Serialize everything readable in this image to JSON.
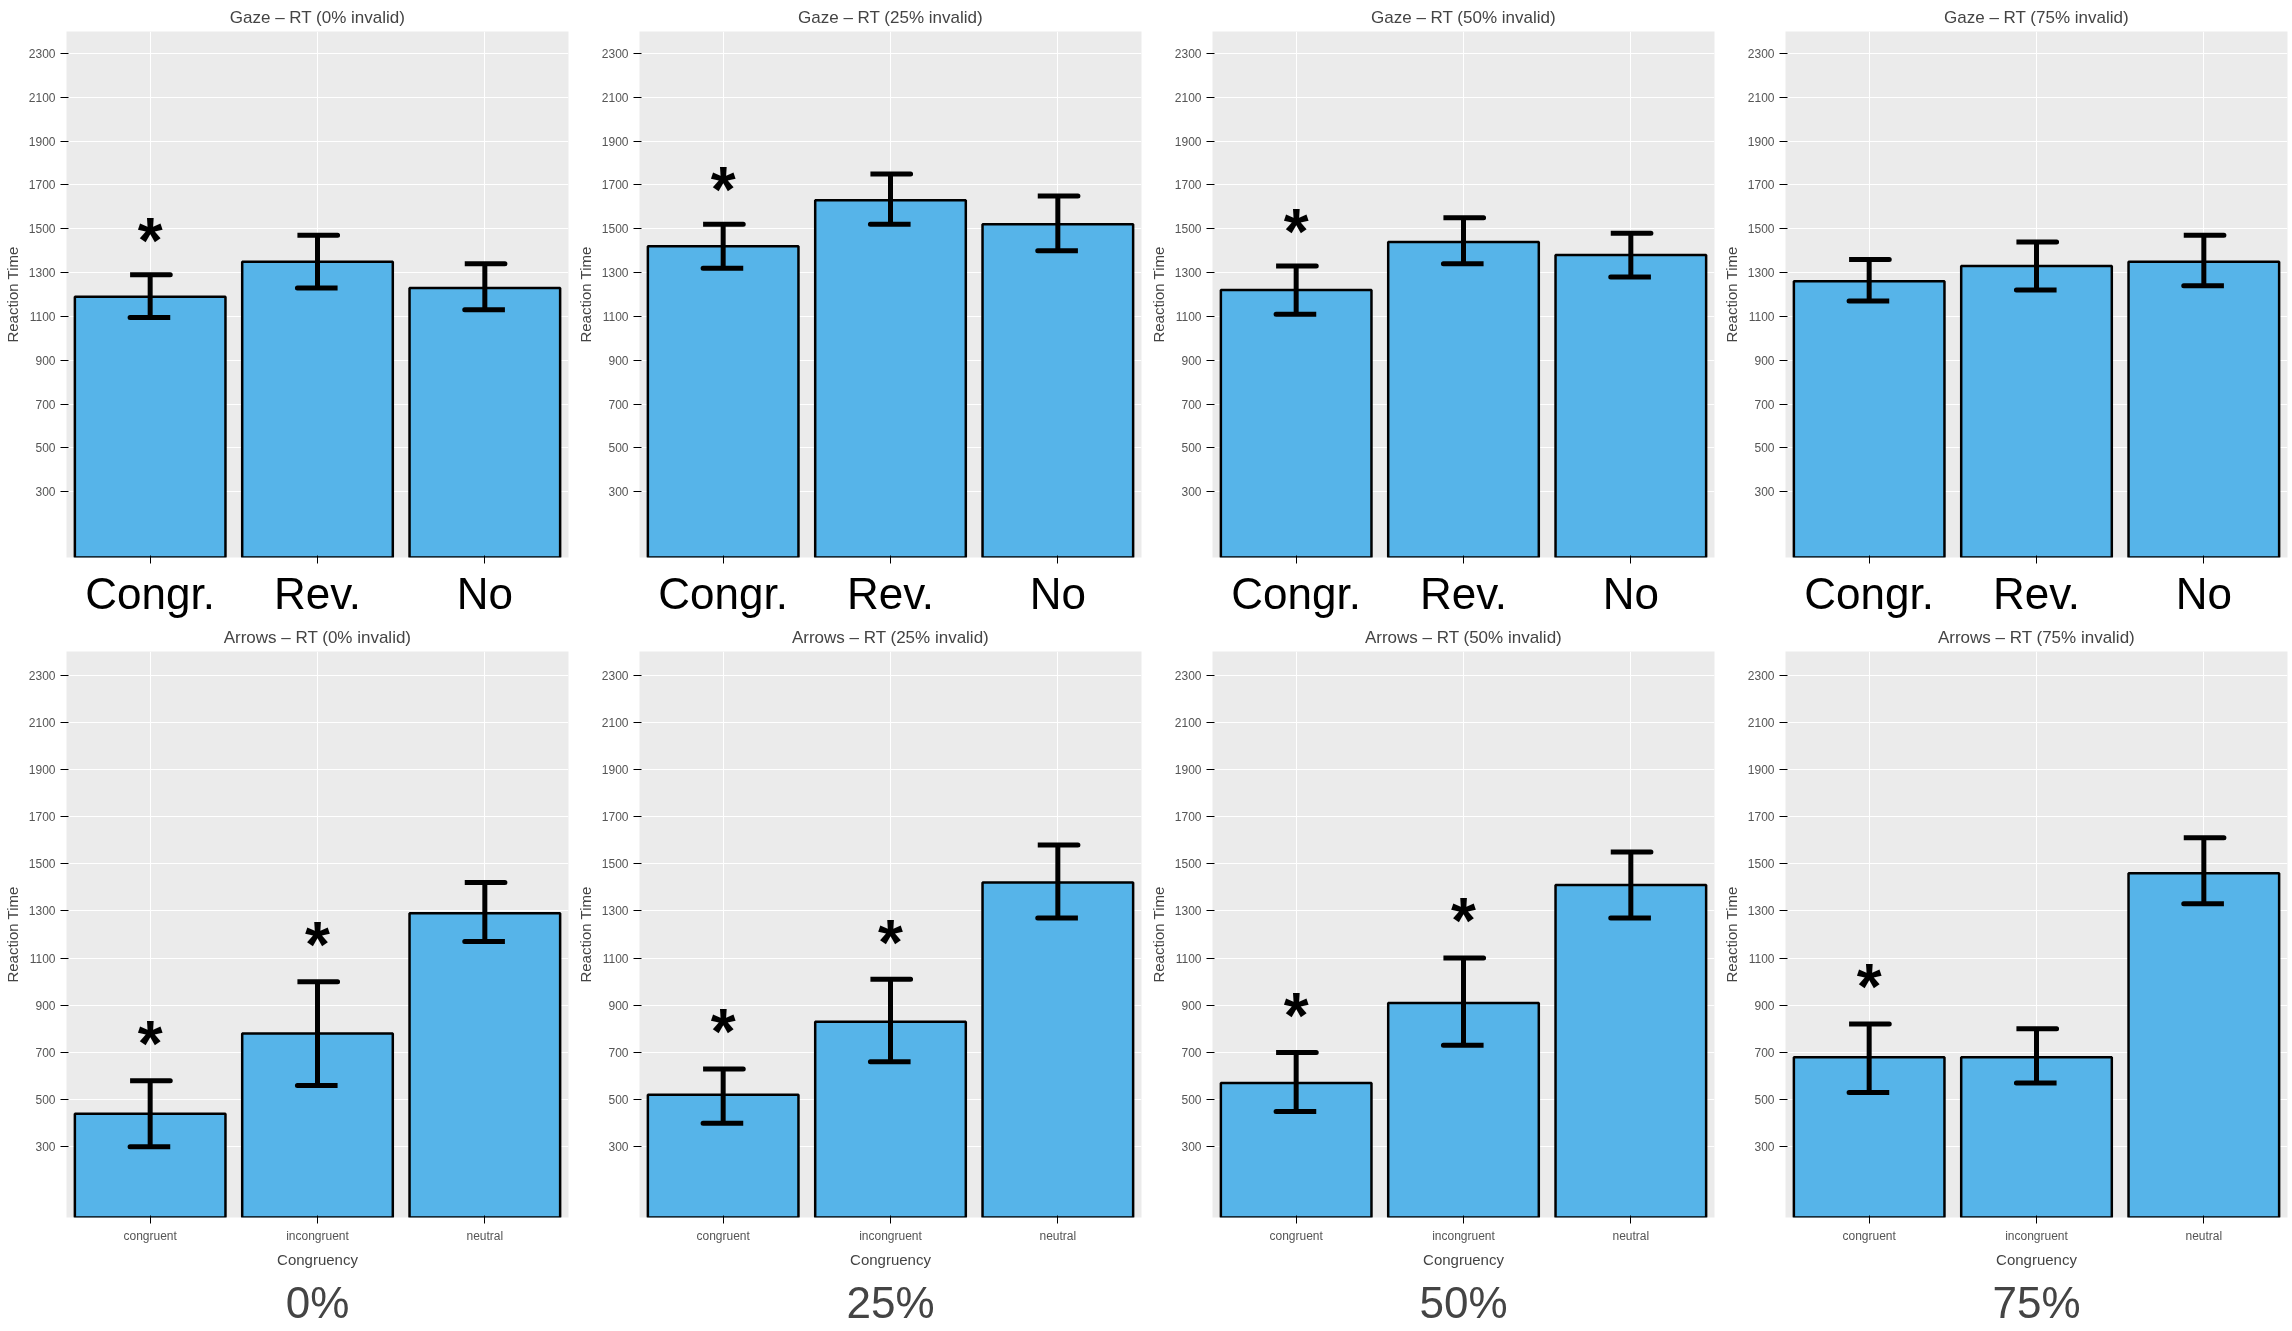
{
  "chart_data": [
    {
      "type": "bar",
      "title": "Gaze – RT (0% invalid)",
      "ylabel": "Reaction Time",
      "categories": [
        "Congr.",
        "Rev.",
        "No"
      ],
      "values": [
        1190,
        1350,
        1230
      ],
      "errors": [
        [
          1095,
          1290
        ],
        [
          1230,
          1470
        ],
        [
          1130,
          1340
        ]
      ],
      "color": "#56b4e9",
      "ylim": [
        0,
        2400
      ],
      "yticks": [
        300,
        500,
        700,
        900,
        1100,
        1300,
        1500,
        1700,
        1900,
        2100,
        2300
      ],
      "grid": true,
      "annotations": [
        "*"
      ]
    },
    {
      "type": "bar",
      "title": "Gaze – RT (25% invalid)",
      "ylabel": "Reaction Time",
      "categories": [
        "Congr.",
        "Rev.",
        "No"
      ],
      "values": [
        1420,
        1630,
        1520
      ],
      "errors": [
        [
          1320,
          1520
        ],
        [
          1520,
          1750
        ],
        [
          1400,
          1650
        ]
      ],
      "color": "#56b4e9",
      "ylim": [
        0,
        2400
      ],
      "yticks": [
        300,
        500,
        700,
        900,
        1100,
        1300,
        1500,
        1700,
        1900,
        2100,
        2300
      ],
      "grid": true,
      "annotations": [
        "*"
      ]
    },
    {
      "type": "bar",
      "title": "Gaze – RT (50% invalid)",
      "ylabel": "Reaction Time",
      "categories": [
        "Congr.",
        "Rev.",
        "No"
      ],
      "values": [
        1220,
        1440,
        1380
      ],
      "errors": [
        [
          1110,
          1330
        ],
        [
          1340,
          1550
        ],
        [
          1280,
          1480
        ]
      ],
      "color": "#56b4e9",
      "ylim": [
        0,
        2400
      ],
      "yticks": [
        300,
        500,
        700,
        900,
        1100,
        1300,
        1500,
        1700,
        1900,
        2100,
        2300
      ],
      "grid": true,
      "annotations": [
        "*"
      ]
    },
    {
      "type": "bar",
      "title": "Gaze – RT (75% invalid)",
      "ylabel": "Reaction Time",
      "categories": [
        "Congr.",
        "Rev.",
        "No"
      ],
      "values": [
        1260,
        1330,
        1350
      ],
      "errors": [
        [
          1170,
          1360
        ],
        [
          1220,
          1440
        ],
        [
          1240,
          1470
        ]
      ],
      "color": "#56b4e9",
      "ylim": [
        0,
        2400
      ],
      "yticks": [
        300,
        500,
        700,
        900,
        1100,
        1300,
        1500,
        1700,
        1900,
        2100,
        2300
      ],
      "grid": true
    },
    {
      "type": "bar",
      "title": "Arrows – RT (0% invalid)",
      "xlabel": "Congruency",
      "ylabel": "Reaction Time",
      "categories": [
        "congruent",
        "incongruent",
        "neutral"
      ],
      "subtitle": "0%",
      "values": [
        440,
        780,
        1290
      ],
      "errors": [
        [
          300,
          580
        ],
        [
          560,
          1000
        ],
        [
          1170,
          1420
        ]
      ],
      "color": "#56b4e9",
      "ylim": [
        0,
        2400
      ],
      "yticks": [
        300,
        500,
        700,
        900,
        1100,
        1300,
        1500,
        1700,
        1900,
        2100,
        2300
      ],
      "grid": true,
      "annotations": [
        "*",
        "*"
      ]
    },
    {
      "type": "bar",
      "title": "Arrows – RT (25% invalid)",
      "xlabel": "Congruency",
      "ylabel": "Reaction Time",
      "categories": [
        "congruent",
        "incongruent",
        "neutral"
      ],
      "subtitle": "25%",
      "values": [
        520,
        830,
        1420
      ],
      "errors": [
        [
          400,
          630
        ],
        [
          660,
          1010
        ],
        [
          1270,
          1580
        ]
      ],
      "color": "#56b4e9",
      "ylim": [
        0,
        2400
      ],
      "yticks": [
        300,
        500,
        700,
        900,
        1100,
        1300,
        1500,
        1700,
        1900,
        2100,
        2300
      ],
      "grid": true,
      "annotations": [
        "*",
        "*"
      ]
    },
    {
      "type": "bar",
      "title": "Arrows – RT (50% invalid)",
      "xlabel": "Congruency",
      "ylabel": "Reaction Time",
      "categories": [
        "congruent",
        "incongruent",
        "neutral"
      ],
      "subtitle": "50%",
      "values": [
        570,
        910,
        1410
      ],
      "errors": [
        [
          450,
          700
        ],
        [
          730,
          1100
        ],
        [
          1270,
          1550
        ]
      ],
      "color": "#56b4e9",
      "ylim": [
        0,
        2400
      ],
      "yticks": [
        300,
        500,
        700,
        900,
        1100,
        1300,
        1500,
        1700,
        1900,
        2100,
        2300
      ],
      "grid": true,
      "annotations": [
        "*",
        "*"
      ]
    },
    {
      "type": "bar",
      "title": "Arrows – RT (75% invalid)",
      "xlabel": "Congruency",
      "ylabel": "Reaction Time",
      "categories": [
        "congruent",
        "incongruent",
        "neutral"
      ],
      "subtitle": "75%",
      "values": [
        680,
        680,
        1460
      ],
      "errors": [
        [
          530,
          820
        ],
        [
          570,
          800
        ],
        [
          1330,
          1610
        ]
      ],
      "color": "#56b4e9",
      "ylim": [
        0,
        2400
      ],
      "yticks": [
        300,
        500,
        700,
        900,
        1100,
        1300,
        1500,
        1700,
        1900,
        2100,
        2300
      ],
      "grid": true,
      "annotations": [
        "*"
      ]
    }
  ]
}
